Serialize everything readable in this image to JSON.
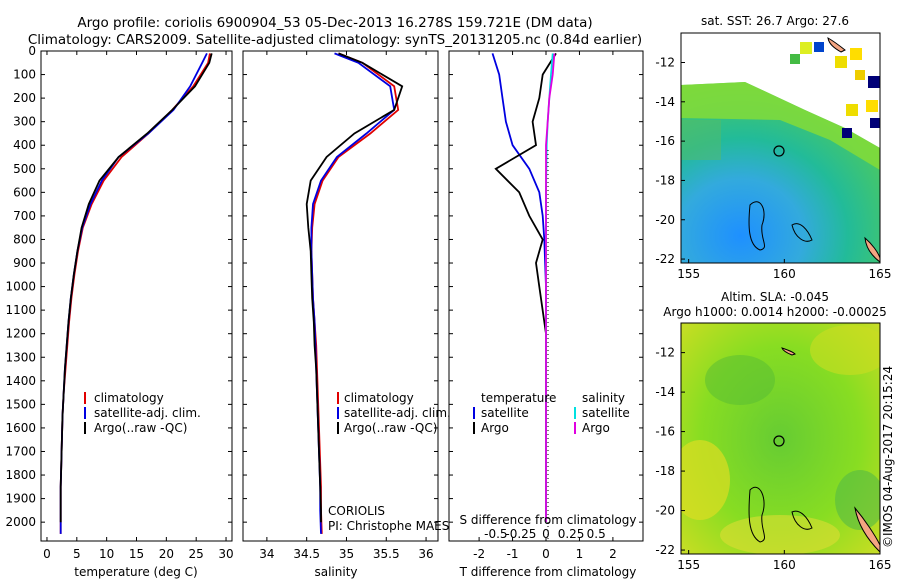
{
  "header": {
    "title_line1": "Argo profile: coriolis 6900904_53 05-Dec-2013 16.278S 159.721E (DM data)",
    "title_line2": "Climatology: CARS2009. Satellite-adjusted climatology: synTS_20131205.nc (0.84d earlier)"
  },
  "colors": {
    "climatology": "#e00000",
    "satellite": "#0000e0",
    "argo": "#000000",
    "salinity_satellite": "#00e0e0",
    "salinity_argo": "#e000e0"
  },
  "panels": {
    "depth_ticks": [
      "0",
      "100",
      "200",
      "300",
      "400",
      "500",
      "600",
      "700",
      "800",
      "900",
      "1000",
      "1100",
      "1200",
      "1300",
      "1400",
      "1500",
      "1600",
      "1700",
      "1800",
      "1900",
      "2000"
    ],
    "temperature": {
      "xlabel": "temperature (deg C)",
      "xticks": [
        "0",
        "5",
        "10",
        "15",
        "20",
        "25",
        "30"
      ],
      "legend": [
        "climatology",
        "satellite-adj. clim.",
        "Argo(..raw -QC)"
      ]
    },
    "salinity": {
      "xlabel": "salinity",
      "xticks": [
        "34",
        "34.5",
        "35",
        "35.5",
        "36"
      ],
      "legend": [
        "climatology",
        "satellite-adj. clim.",
        "Argo(..raw -QC)"
      ],
      "note_line1": "CORIOLIS",
      "note_line2": "PI: Christophe MAES"
    },
    "difference": {
      "top_label": "S difference from climatology",
      "top_ticks": [
        "-0.5",
        "-0.25",
        "0",
        "0.25",
        "0.5"
      ],
      "xlabel": "T difference from climatology",
      "xticks": [
        "-2",
        "-1",
        "0",
        "1",
        "2"
      ],
      "legend_temperature_title": "temperature",
      "legend_salinity_title": "salinity",
      "legend_satellite": "satellite",
      "legend_argo": "Argo"
    }
  },
  "maps": {
    "sst": {
      "title": "sat. SST: 26.7  Argo: 27.6",
      "yticks": [
        "-12",
        "-14",
        "-16",
        "-18",
        "-20",
        "-22"
      ],
      "xticks": [
        "155",
        "160",
        "165"
      ]
    },
    "sla": {
      "title_line1": "Altim. SLA: -0.045",
      "title_line2": "Argo h1000: 0.0014  h2000: -0.00025",
      "yticks": [
        "-12",
        "-14",
        "-16",
        "-18",
        "-20",
        "-22"
      ],
      "xticks": [
        "155",
        "160",
        "165"
      ]
    },
    "stamp": "©IMOS 04-Aug-2017 20:15:24"
  },
  "chart_data": [
    {
      "type": "line",
      "title": "",
      "xlabel": "temperature (deg C)",
      "ylabel": "",
      "xlim": [
        -1,
        31
      ],
      "ylim": [
        2080,
        0
      ],
      "series": [
        {
          "name": "climatology",
          "color": "#e00000",
          "x": [
            27.3,
            27.0,
            24.5,
            21.0,
            17.0,
            12.5,
            9.5,
            7.5,
            6.0,
            5.2,
            4.6,
            4.1,
            3.7,
            3.4,
            3.1,
            2.8,
            2.6,
            2.5,
            2.4,
            2.3,
            2.3,
            2.3
          ],
          "y": [
            10,
            50,
            150,
            250,
            350,
            450,
            550,
            650,
            750,
            850,
            950,
            1050,
            1150,
            1250,
            1350,
            1450,
            1550,
            1650,
            1750,
            1850,
            1950,
            2050
          ]
        },
        {
          "name": "satellite-adj. clim.",
          "color": "#0000e0",
          "x": [
            26.8,
            26.0,
            24.0,
            21.2,
            17.0,
            12.0,
            9.2,
            7.3,
            5.9,
            5.1,
            4.5,
            4.0,
            3.6,
            3.3,
            3.0,
            2.8,
            2.6,
            2.5,
            2.4,
            2.3,
            2.3,
            2.3
          ],
          "y": [
            10,
            50,
            150,
            250,
            350,
            450,
            550,
            650,
            750,
            850,
            950,
            1050,
            1150,
            1250,
            1350,
            1450,
            1550,
            1650,
            1750,
            1850,
            1950,
            2050
          ]
        },
        {
          "name": "Argo(..raw -QC)",
          "color": "#000000",
          "x": [
            27.6,
            27.2,
            24.8,
            21.0,
            16.8,
            12.0,
            8.8,
            7.0,
            5.8,
            5.1,
            4.5,
            4.0,
            3.6,
            3.3,
            3.0,
            2.8,
            2.6,
            2.5,
            2.4,
            2.3,
            2.3,
            2.3
          ],
          "y": [
            10,
            50,
            150,
            250,
            350,
            450,
            550,
            650,
            750,
            850,
            950,
            1050,
            1150,
            1250,
            1350,
            1450,
            1550,
            1650,
            1750,
            1850,
            1950,
            2000
          ]
        }
      ]
    },
    {
      "type": "line",
      "title": "",
      "xlabel": "salinity",
      "ylabel": "",
      "xlim": [
        33.7,
        36.15
      ],
      "ylim": [
        2080,
        0
      ],
      "series": [
        {
          "name": "climatology",
          "color": "#e00000",
          "x": [
            34.9,
            35.2,
            35.6,
            35.65,
            35.3,
            34.9,
            34.7,
            34.6,
            34.57,
            34.56,
            34.57,
            34.58,
            34.6,
            34.62,
            34.63,
            34.64,
            34.65,
            34.66,
            34.67,
            34.68,
            34.68,
            34.69
          ],
          "y": [
            10,
            50,
            150,
            250,
            350,
            450,
            550,
            650,
            750,
            850,
            950,
            1050,
            1150,
            1250,
            1350,
            1450,
            1550,
            1650,
            1750,
            1850,
            1950,
            2050
          ]
        },
        {
          "name": "satellite-adj. clim.",
          "color": "#0000e0",
          "x": [
            34.85,
            35.15,
            35.55,
            35.6,
            35.25,
            34.88,
            34.68,
            34.58,
            34.56,
            34.56,
            34.57,
            34.58,
            34.6,
            34.61,
            34.62,
            34.63,
            34.64,
            34.65,
            34.66,
            34.67,
            34.67,
            34.68
          ],
          "y": [
            10,
            50,
            150,
            250,
            350,
            450,
            550,
            650,
            750,
            850,
            950,
            1050,
            1150,
            1250,
            1350,
            1450,
            1550,
            1650,
            1750,
            1850,
            1950,
            2050
          ]
        },
        {
          "name": "Argo(..raw -QC)",
          "color": "#000000",
          "x": [
            34.9,
            35.2,
            35.7,
            35.6,
            35.1,
            34.75,
            34.55,
            34.5,
            34.52,
            34.55,
            34.56,
            34.57,
            34.59,
            34.6,
            34.62,
            34.63,
            34.64,
            34.65,
            34.66,
            34.67,
            34.68,
            34.68
          ],
          "y": [
            10,
            50,
            150,
            250,
            350,
            450,
            550,
            650,
            750,
            850,
            950,
            1050,
            1150,
            1250,
            1350,
            1450,
            1550,
            1650,
            1750,
            1850,
            1950,
            2000
          ]
        }
      ]
    },
    {
      "type": "line",
      "title": "",
      "xlabel": "T difference from climatology",
      "ylabel": "",
      "xlim": [
        -2.9,
        2.9
      ],
      "ylim": [
        2080,
        0
      ],
      "series": [
        {
          "name": "temperature satellite",
          "color": "#0000e0",
          "x": [
            -1.6,
            -1.4,
            -1.3,
            -1.2,
            -1.0,
            -0.5,
            -0.2,
            -0.1,
            -0.05,
            0.0,
            0.0,
            0.0,
            0.0
          ],
          "y": [
            10,
            100,
            200,
            300,
            400,
            500,
            600,
            700,
            800,
            1000,
            1200,
            1600,
            2000
          ]
        },
        {
          "name": "temperature Argo",
          "color": "#000000",
          "x": [
            0.3,
            -0.1,
            -0.2,
            -0.4,
            -0.3,
            -1.5,
            -0.8,
            -0.5,
            -0.1,
            -0.3,
            -0.2,
            0.0,
            0.0,
            0.0
          ],
          "y": [
            10,
            100,
            200,
            300,
            400,
            500,
            600,
            700,
            800,
            900,
            1000,
            1200,
            1600,
            2000
          ]
        },
        {
          "name": "salinity satellite",
          "color": "#00e0e0",
          "x": [
            0.2,
            0.15,
            0.1,
            0.05,
            0.02,
            0.0,
            0.0,
            0.0,
            0.0,
            0.0
          ],
          "y": [
            10,
            100,
            200,
            300,
            400,
            600,
            800,
            1000,
            1400,
            2000
          ]
        },
        {
          "name": "salinity Argo",
          "color": "#e000e0",
          "x": [
            0.25,
            0.2,
            0.1,
            0.05,
            0.0,
            0.0,
            0.0,
            0.0,
            0.0,
            0.0
          ],
          "y": [
            10,
            100,
            200,
            300,
            400,
            600,
            800,
            1000,
            1400,
            2000
          ]
        }
      ]
    }
  ]
}
